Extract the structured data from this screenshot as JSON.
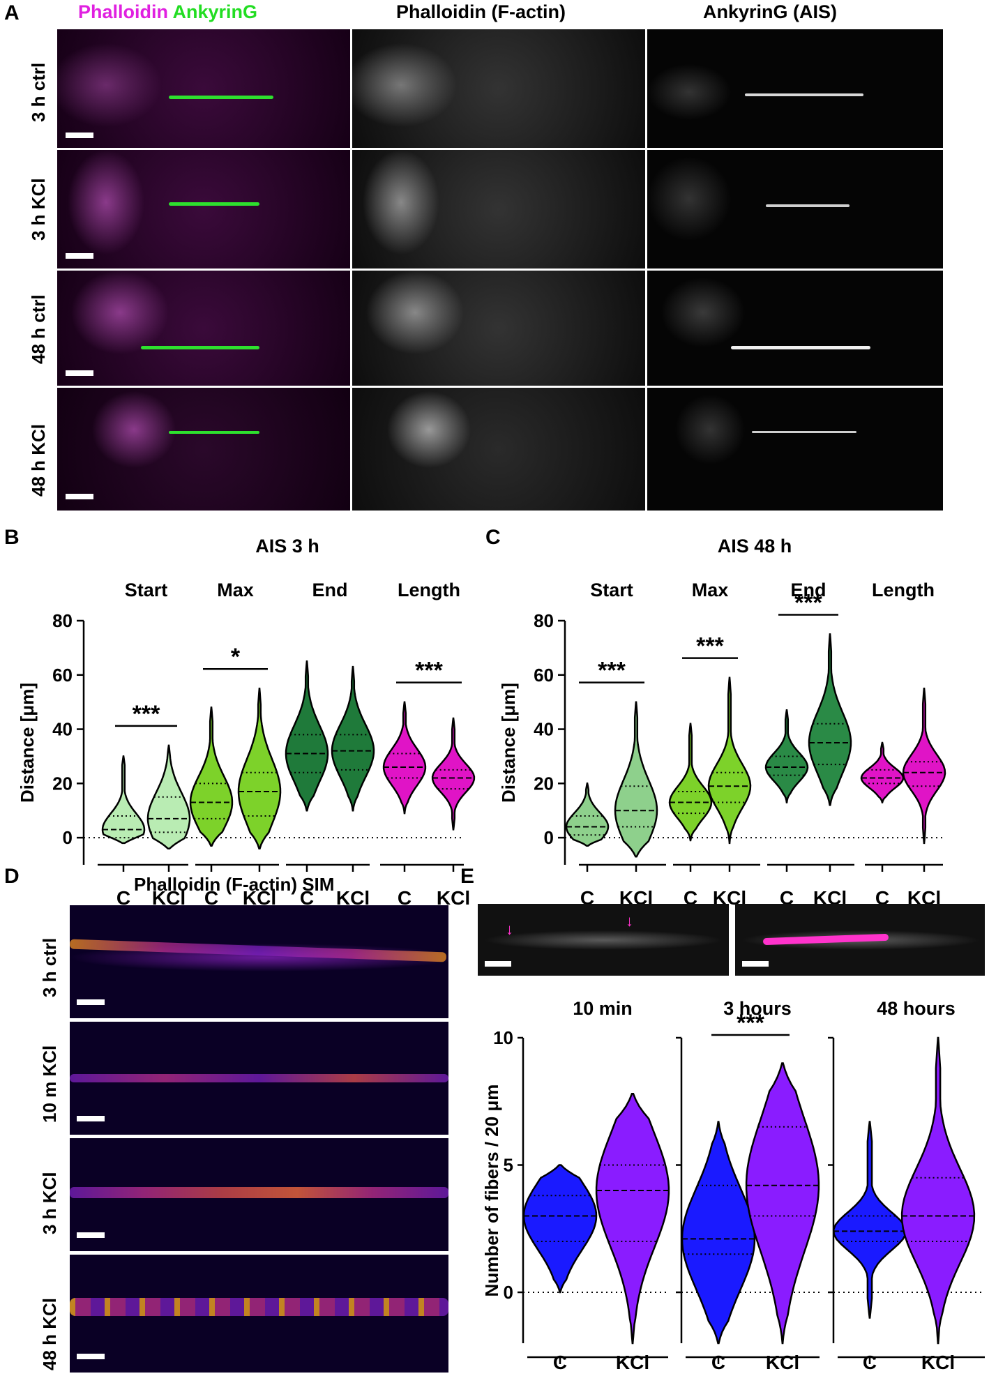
{
  "panel_a": {
    "letter": "A",
    "col_headers": [
      {
        "parts": [
          {
            "text": "Phalloidin",
            "color": "#e020e0"
          },
          {
            "text": " AnkyrinG",
            "color": "#22dd22"
          }
        ]
      },
      {
        "parts": [
          {
            "text": "Phalloidin  (F-actin)",
            "color": "#000000"
          }
        ]
      },
      {
        "parts": [
          {
            "text": "AnkyrinG (AIS)",
            "color": "#000000"
          }
        ]
      }
    ],
    "rows": [
      "3 h ctrl",
      "3 h KCl",
      "48 h ctrl",
      "48 h KCl"
    ]
  },
  "panel_d": {
    "letter": "D",
    "title": "Phalloidin (F-actin) SIM",
    "rows": [
      "3 h ctrl",
      "10 m KCl",
      "3 h KCl",
      "48 h KCl"
    ]
  },
  "panel_e": {
    "letter": "E"
  },
  "chart_data": [
    {
      "id": "B",
      "letter": "B",
      "type": "violin",
      "title": "AIS 3 h",
      "ylabel": "Distance [μm]",
      "ylim": [
        -10,
        80
      ],
      "yticks": [
        0,
        20,
        40,
        60,
        80
      ],
      "zero_line": "dotted",
      "groups": [
        {
          "name": "Start",
          "color": "#b9ecb3",
          "violins": [
            {
              "label": "C",
              "median": 3,
              "q1": 0,
              "q3": 8,
              "min": -2,
              "max": 30
            },
            {
              "label": "KCl",
              "median": 7,
              "q1": 2,
              "q3": 15,
              "min": -4,
              "max": 34
            }
          ],
          "significance": "***"
        },
        {
          "name": "Max",
          "color": "#7dd22a",
          "violins": [
            {
              "label": "C",
              "median": 13,
              "q1": 7,
              "q3": 20,
              "min": -3,
              "max": 48
            },
            {
              "label": "KCl",
              "median": 17,
              "q1": 8,
              "q3": 24,
              "min": -4,
              "max": 55
            }
          ],
          "significance": "*"
        },
        {
          "name": "End",
          "color": "#1f7a3a",
          "violins": [
            {
              "label": "C",
              "median": 31,
              "q1": 24,
              "q3": 38,
              "min": 10,
              "max": 65
            },
            {
              "label": "KCl",
              "median": 32,
              "q1": 25,
              "q3": 38,
              "min": 10,
              "max": 63
            }
          ],
          "significance": ""
        },
        {
          "name": "Length",
          "color": "#e014c6",
          "violins": [
            {
              "label": "C",
              "median": 26,
              "q1": 22,
              "q3": 31,
              "min": 9,
              "max": 50
            },
            {
              "label": "KCl",
              "median": 22,
              "q1": 18,
              "q3": 25,
              "min": 3,
              "max": 44
            }
          ],
          "significance": "***"
        }
      ],
      "x_labels": [
        "C",
        "KCl",
        "C",
        "KCl",
        "C",
        "KCl",
        "C",
        "KCl"
      ]
    },
    {
      "id": "C",
      "letter": "C",
      "type": "violin",
      "title": "AIS 48 h",
      "ylabel": "Distance [μm]",
      "ylim": [
        -10,
        80
      ],
      "yticks": [
        0,
        20,
        40,
        60,
        80
      ],
      "zero_line": "dotted",
      "groups": [
        {
          "name": "Start",
          "color": "#8ed08c",
          "violins": [
            {
              "label": "C",
              "median": 4,
              "q1": 1,
              "q3": 8,
              "min": -3,
              "max": 20
            },
            {
              "label": "KCl",
              "median": 10,
              "q1": 4,
              "q3": 19,
              "min": -7,
              "max": 50
            }
          ],
          "significance": "***"
        },
        {
          "name": "Max",
          "color": "#7dd22a",
          "violins": [
            {
              "label": "C",
              "median": 13,
              "q1": 9,
              "q3": 17,
              "min": -1,
              "max": 42
            },
            {
              "label": "KCl",
              "median": 19,
              "q1": 13,
              "q3": 24,
              "min": -2,
              "max": 59
            }
          ],
          "significance": "***"
        },
        {
          "name": "End",
          "color": "#2a8a46",
          "violins": [
            {
              "label": "C",
              "median": 26,
              "q1": 23,
              "q3": 30,
              "min": 13,
              "max": 47
            },
            {
              "label": "KCl",
              "median": 35,
              "q1": 27,
              "q3": 42,
              "min": 12,
              "max": 75
            }
          ],
          "significance": "***"
        },
        {
          "name": "Length",
          "color": "#e014c6",
          "violins": [
            {
              "label": "C",
              "median": 22,
              "q1": 20,
              "q3": 25,
              "min": 13,
              "max": 35
            },
            {
              "label": "KCl",
              "median": 24,
              "q1": 19,
              "q3": 28,
              "min": -2,
              "max": 55
            }
          ],
          "significance": ""
        }
      ],
      "x_labels": [
        "C",
        "KCl",
        "C",
        "KCl",
        "C",
        "KCl",
        "C",
        "KCl"
      ]
    },
    {
      "id": "E",
      "type": "violin",
      "ylabel": "Number of fibers / 20 μm",
      "ylim": [
        -2,
        10
      ],
      "yticks": [
        0,
        5,
        10
      ],
      "zero_line": "dotted",
      "groups": [
        {
          "name": "10 min",
          "violins": [
            {
              "label": "C",
              "color": "#1a1aff",
              "median": 3,
              "q1": 2,
              "q3": 3.8,
              "min": 0,
              "max": 5
            },
            {
              "label": "KCl",
              "color": "#8a1cff",
              "median": 4,
              "q1": 2,
              "q3": 5,
              "min": -2,
              "max": 7.8
            }
          ],
          "significance": ""
        },
        {
          "name": "3 hours",
          "violins": [
            {
              "label": "C",
              "color": "#1a1aff",
              "median": 2.1,
              "q1": 1.5,
              "q3": 4.2,
              "min": -2,
              "max": 6.7
            },
            {
              "label": "KCl",
              "color": "#8a1cff",
              "median": 4.2,
              "q1": 3,
              "q3": 6.5,
              "min": -2,
              "max": 9
            }
          ],
          "significance": "***"
        },
        {
          "name": "48 hours",
          "violins": [
            {
              "label": "C",
              "color": "#1a1aff",
              "median": 2.4,
              "q1": 2,
              "q3": 3,
              "min": -1,
              "max": 6.7
            },
            {
              "label": "KCl",
              "color": "#8a1cff",
              "median": 3,
              "q1": 2,
              "q3": 4.5,
              "min": -2,
              "max": 10
            }
          ],
          "significance": ""
        }
      ],
      "x_labels": [
        "C",
        "KCl",
        "C",
        "KCl",
        "C",
        "KCl"
      ]
    }
  ]
}
